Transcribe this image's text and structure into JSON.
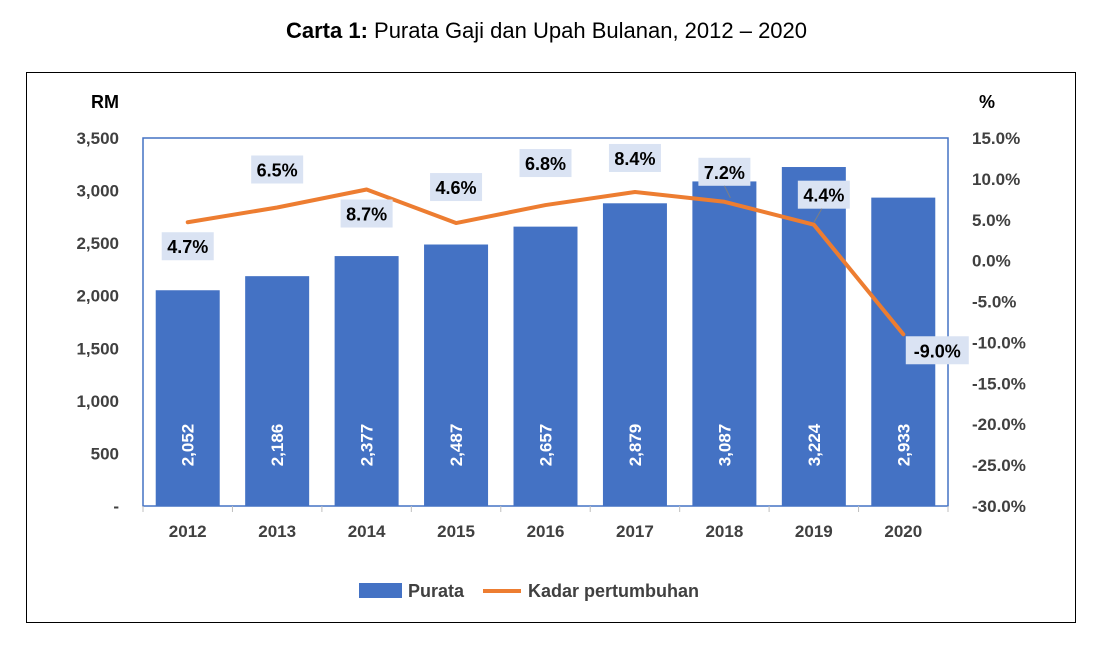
{
  "title": {
    "bold": "Carta 1:",
    "rest": " Purata Gaji dan Upah Bulanan, 2012 – 2020"
  },
  "chart_data": {
    "type": "bar",
    "categories": [
      "2012",
      "2013",
      "2014",
      "2015",
      "2016",
      "2017",
      "2018",
      "2019",
      "2020"
    ],
    "series": [
      {
        "name": "Purata",
        "type": "bar",
        "axis": "left",
        "values": [
          2052,
          2186,
          2377,
          2487,
          2657,
          2879,
          3087,
          3224,
          2933
        ],
        "value_labels": [
          "2,052",
          "2,186",
          "2,377",
          "2,487",
          "2,657",
          "2,879",
          "3,087",
          "3,224",
          "2,933"
        ]
      },
      {
        "name": "Kadar pertumbuhan",
        "type": "line",
        "axis": "right",
        "values": [
          4.7,
          6.5,
          8.7,
          4.6,
          6.8,
          8.4,
          7.2,
          4.4,
          -9.0
        ],
        "value_labels": [
          "4.7%",
          "6.5%",
          "8.7%",
          "4.6%",
          "6.8%",
          "8.4%",
          "7.2%",
          "4.4%",
          "-9.0%"
        ]
      }
    ],
    "left_axis": {
      "unit": "RM",
      "ylim": [
        0,
        3500
      ],
      "ticks": [
        "-",
        "500",
        "1,000",
        "1,500",
        "2,000",
        "2,500",
        "3,000",
        "3,500"
      ]
    },
    "right_axis": {
      "unit": "%",
      "ylim": [
        -30,
        15
      ],
      "ticks": [
        "-30.0%",
        "-25.0%",
        "-20.0%",
        "-15.0%",
        "-10.0%",
        "-5.0%",
        "0.0%",
        "5.0%",
        "10.0%",
        "15.0%"
      ]
    },
    "grid": false,
    "legend": "bottom",
    "colors": {
      "bar": "#4472C4",
      "line": "#ED7D31",
      "label_box": "#DAE3F3"
    }
  }
}
